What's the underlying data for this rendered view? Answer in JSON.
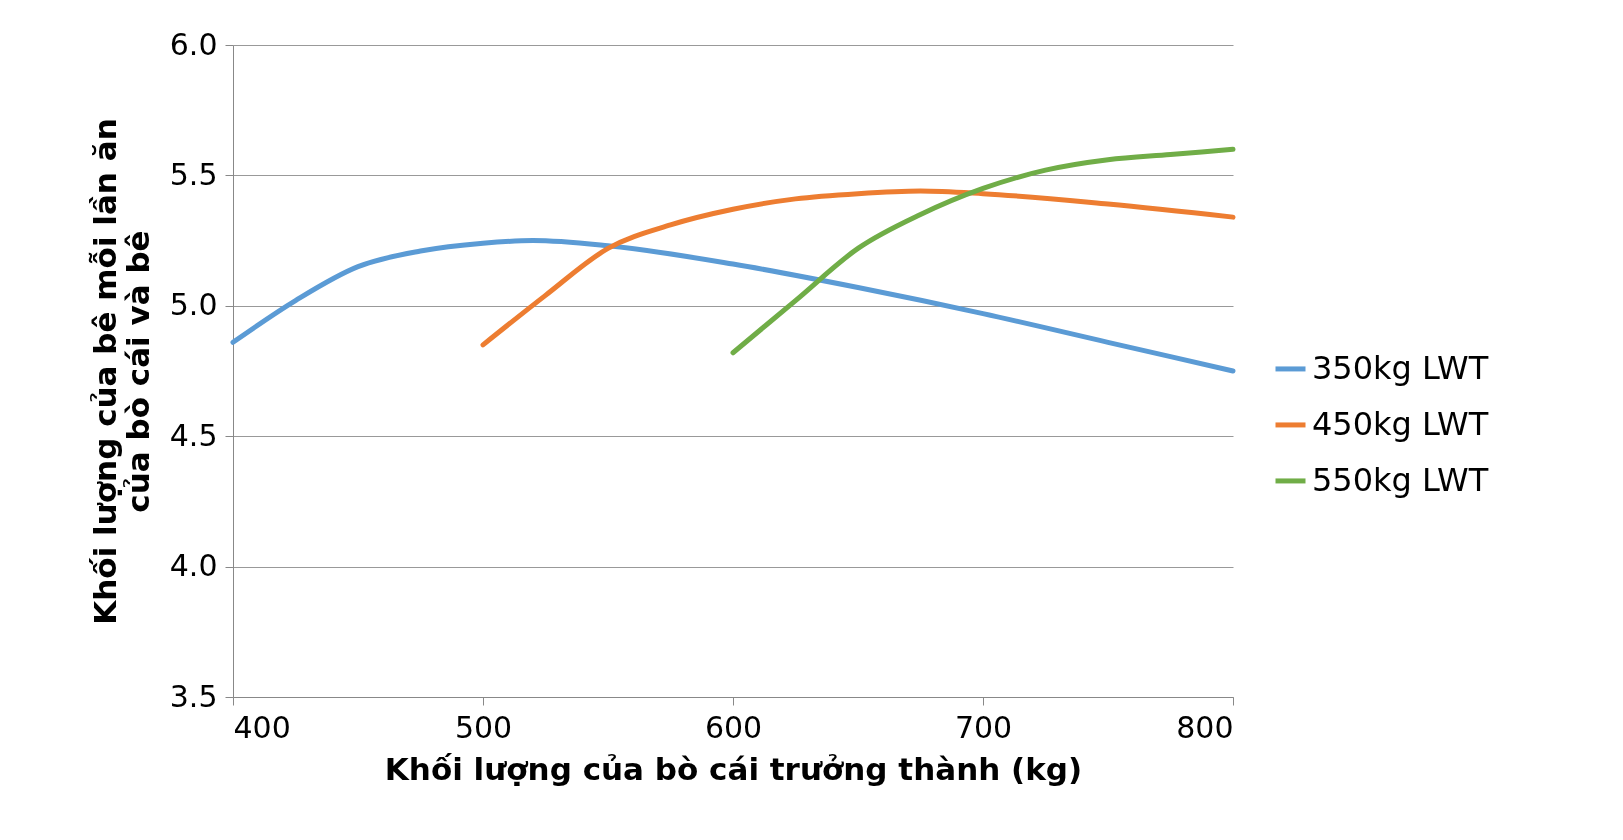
{
  "chart_data": {
    "type": "line",
    "xlabel": "Khối lượng của bò cái trưởng thành (kg)",
    "ylabel": "Khối lượng của bê mỗi lần ăn\ncủa bò cái và bê",
    "xlim": [
      400,
      800
    ],
    "xticks": [
      400,
      500,
      600,
      700,
      800
    ],
    "ylim": [
      3.5,
      6.0
    ],
    "yticks": [
      3.5,
      {
        "value": 4,
        "label": "4.0"
      },
      4.5,
      {
        "value": 5,
        "label": "5.0"
      },
      5.5,
      {
        "value": 6,
        "label": "6.0"
      }
    ],
    "grid": "y",
    "legend": "right",
    "line_style": "solid",
    "marker": "none",
    "series": [
      {
        "name": "350kg LWT",
        "color": "#5b9bd5",
        "x": [
          400,
          425,
          450,
          475,
          500,
          520,
          550,
          600,
          650,
          700,
          750,
          800
        ],
        "values": [
          4.86,
          5.02,
          5.15,
          5.21,
          5.24,
          5.25,
          5.23,
          5.16,
          5.07,
          4.97,
          4.86,
          4.75
        ]
      },
      {
        "name": "450kg LWT",
        "color": "#ed7d31",
        "x": [
          500,
          525,
          550,
          575,
          600,
          625,
          650,
          675,
          700,
          750,
          800
        ],
        "values": [
          4.85,
          5.04,
          5.22,
          5.31,
          5.37,
          5.41,
          5.43,
          5.44,
          5.43,
          5.39,
          5.34
        ]
      },
      {
        "name": "550kg LWT",
        "color": "#70ad47",
        "x": [
          600,
          625,
          650,
          675,
          700,
          725,
          750,
          775,
          800
        ],
        "values": [
          4.82,
          5.02,
          5.22,
          5.35,
          5.45,
          5.52,
          5.56,
          5.58,
          5.6
        ]
      }
    ]
  }
}
